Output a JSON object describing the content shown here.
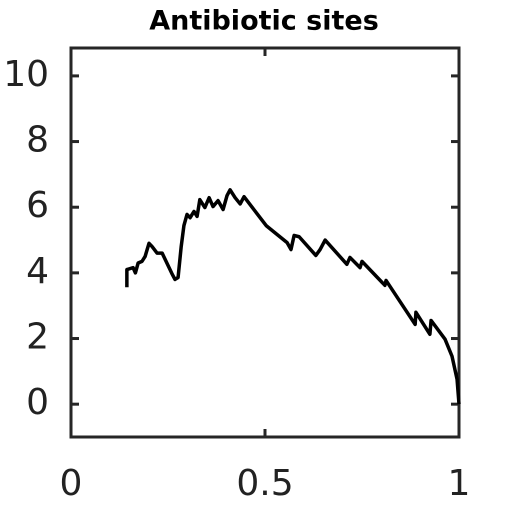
{
  "chart_data": {
    "type": "line",
    "title": "Antibiotic sites",
    "x": [
      0.144,
      0.144,
      0.16,
      0.166,
      0.173,
      0.183,
      0.191,
      0.201,
      0.209,
      0.222,
      0.235,
      0.26,
      0.268,
      0.276,
      0.284,
      0.291,
      0.299,
      0.307,
      0.317,
      0.325,
      0.332,
      0.345,
      0.356,
      0.366,
      0.379,
      0.392,
      0.402,
      0.41,
      0.423,
      0.436,
      0.446,
      0.503,
      0.557,
      0.567,
      0.575,
      0.588,
      0.631,
      0.642,
      0.655,
      0.711,
      0.719,
      0.745,
      0.75,
      0.809,
      0.812,
      0.887,
      0.889,
      0.925,
      0.928,
      0.964,
      0.982,
      0.995,
      1.0
    ],
    "series": [
      {
        "name": "Antibiotic sites",
        "color": "#000000",
        "values": [
          3.56,
          4.1,
          4.16,
          4.0,
          4.3,
          4.35,
          4.5,
          4.9,
          4.8,
          4.6,
          4.6,
          3.98,
          3.8,
          3.86,
          4.8,
          5.44,
          5.78,
          5.68,
          5.87,
          5.72,
          6.23,
          5.99,
          6.29,
          6.02,
          6.2,
          5.93,
          6.35,
          6.53,
          6.29,
          6.1,
          6.32,
          5.44,
          4.92,
          4.71,
          5.14,
          5.1,
          4.53,
          4.71,
          5.0,
          4.26,
          4.47,
          4.16,
          4.35,
          3.62,
          3.77,
          2.43,
          2.8,
          2.13,
          2.55,
          1.98,
          1.46,
          0.76,
          0
        ]
      }
    ],
    "xlim": [
      0,
      1
    ],
    "ylim": [
      -1,
      10.85
    ],
    "xticks": [
      0,
      0.5,
      1
    ],
    "yticks": [
      0,
      2,
      4,
      6,
      8,
      10
    ]
  }
}
